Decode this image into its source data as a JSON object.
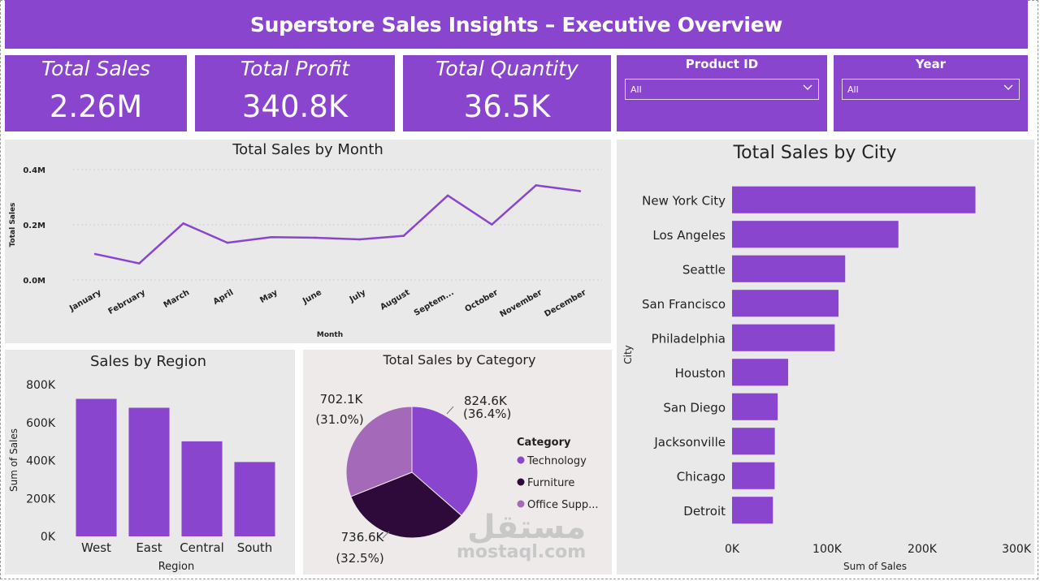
{
  "header": {
    "title": "Superstore Sales Insights – Executive Overview"
  },
  "kpis": [
    {
      "label": "Total Sales",
      "value": "2.26M"
    },
    {
      "label": "Total Profit",
      "value": "340.8K"
    },
    {
      "label": "Total Quantity",
      "value": "36.5K"
    }
  ],
  "slicers": [
    {
      "label": "Product ID",
      "selected": "All",
      "icon": "chevron-down-icon"
    },
    {
      "label": "Year",
      "selected": "All",
      "icon": "chevron-down-icon"
    }
  ],
  "colors": {
    "accent": "#8A45CF",
    "panel_bg": "#E9E9E9",
    "pie_panel_bg": "#EFEAEA",
    "furniture": "#2E0A3A",
    "office_supplies": "#A469B8"
  },
  "watermark": {
    "arabic": "مستقل",
    "latin": "mostaql.com"
  },
  "chart_data": [
    {
      "id": "month",
      "type": "line",
      "title": "Total Sales by Month",
      "xlabel": "Month",
      "ylabel": "Total Sales",
      "categories": [
        "January",
        "February",
        "March",
        "April",
        "May",
        "June",
        "July",
        "August",
        "Septem...",
        "October",
        "November",
        "December"
      ],
      "values": [
        0.094,
        0.06,
        0.205,
        0.135,
        0.155,
        0.153,
        0.147,
        0.16,
        0.306,
        0.201,
        0.343,
        0.322
      ],
      "value_unit": "M",
      "ylim": [
        0,
        0.4
      ],
      "yticks": [
        0,
        0.2,
        0.4
      ],
      "ytick_labels": [
        "0.0M",
        "0.2M",
        "0.4M"
      ],
      "grid": true
    },
    {
      "id": "city",
      "type": "bar",
      "orientation": "horizontal",
      "title": "Total Sales by City",
      "xlabel": "Sum of Sales",
      "ylabel": "City",
      "categories": [
        "New York City",
        "Los Angeles",
        "Seattle",
        "San Francisco",
        "Philadelphia",
        "Houston",
        "San Diego",
        "Jacksonville",
        "Chicago",
        "Detroit"
      ],
      "values": [
        256000,
        175000,
        119000,
        112000,
        108000,
        59000,
        48000,
        45000,
        44800,
        43000
      ],
      "xlim": [
        0,
        300000
      ],
      "xticks": [
        0,
        100000,
        200000,
        300000
      ],
      "xtick_labels": [
        "0K",
        "100K",
        "200K",
        "300K"
      ]
    },
    {
      "id": "region",
      "type": "bar",
      "title": "Sales by Region",
      "xlabel": "Region",
      "ylabel": "Sum of Sales",
      "categories": [
        "West",
        "East",
        "Central",
        "South"
      ],
      "values": [
        725000,
        678000,
        501000,
        392000
      ],
      "ylim": [
        0,
        800000
      ],
      "yticks": [
        0,
        200000,
        400000,
        600000,
        800000
      ],
      "ytick_labels": [
        "0K",
        "200K",
        "400K",
        "600K",
        "800K"
      ]
    },
    {
      "id": "category",
      "type": "pie",
      "title": "Total Sales by Category",
      "legend_title": "Category",
      "legend_position": "right",
      "slices": [
        {
          "name": "Technology",
          "value": 824.6,
          "label": "824.6K",
          "pct": "(36.4%)",
          "color": "#8A45CF"
        },
        {
          "name": "Furniture",
          "value": 736.6,
          "label": "736.6K",
          "pct": "(32.5%)",
          "color": "#2E0A3A"
        },
        {
          "name": "Office Supp...",
          "value": 702.1,
          "label": "702.1K",
          "pct": "(31.0%)",
          "color": "#A469B8"
        }
      ]
    }
  ]
}
